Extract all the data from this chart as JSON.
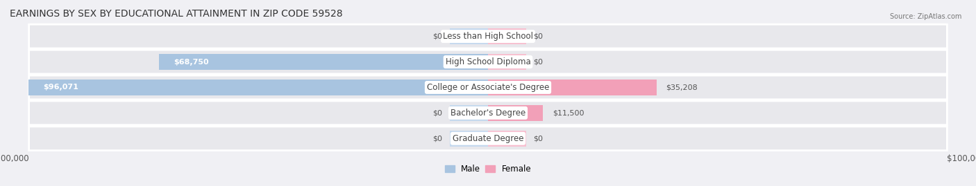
{
  "title": "EARNINGS BY SEX BY EDUCATIONAL ATTAINMENT IN ZIP CODE 59528",
  "source": "Source: ZipAtlas.com",
  "categories": [
    "Less than High School",
    "High School Diploma",
    "College or Associate's Degree",
    "Bachelor's Degree",
    "Graduate Degree"
  ],
  "male_values": [
    0,
    68750,
    96071,
    0,
    0
  ],
  "female_values": [
    0,
    0,
    35208,
    11500,
    0
  ],
  "male_color": "#a8c4e0",
  "female_color": "#f2a0b8",
  "male_color_zero": "#c5d9ee",
  "female_color_zero": "#f7c0d0",
  "male_label": "Male",
  "female_label": "Female",
  "xlim": 100000,
  "bar_height": 0.62,
  "row_bg_color": "#e8e8ec",
  "row_border_color": "#ffffff",
  "fig_bg_color": "#f0f0f4",
  "title_fontsize": 10,
  "label_fontsize": 8.5,
  "value_fontsize": 8,
  "tick_fontsize": 8.5,
  "zero_stub": 8000
}
